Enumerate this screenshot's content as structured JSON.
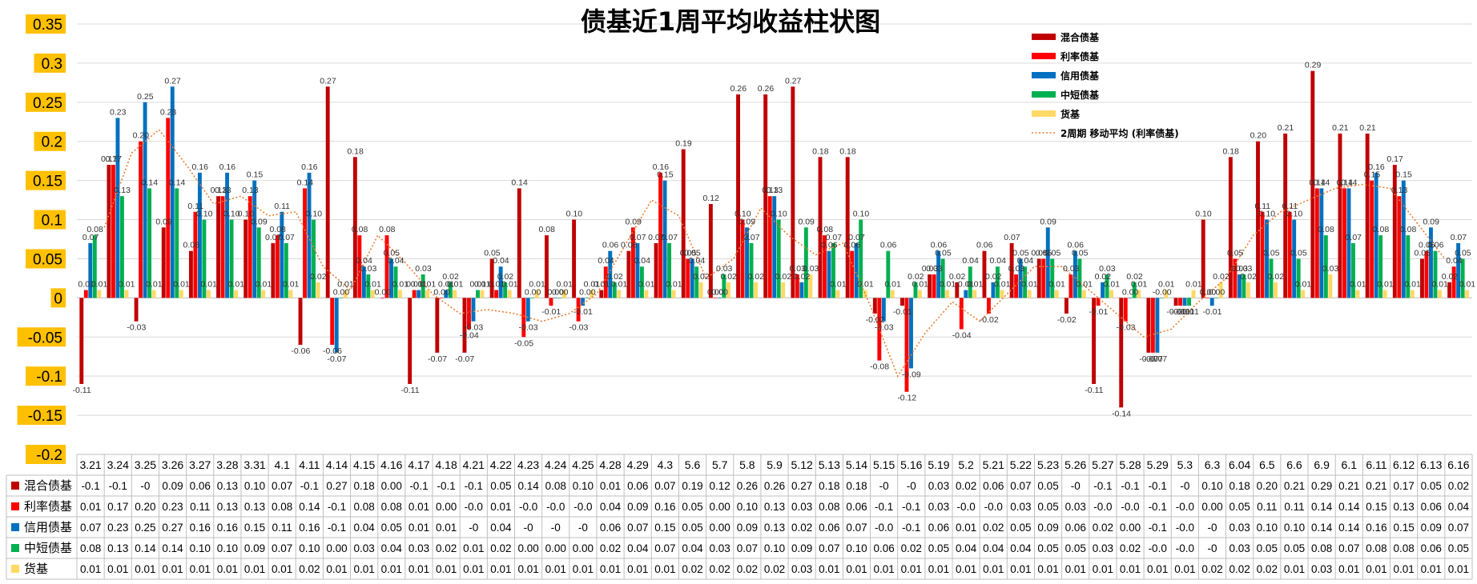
{
  "chart_data": {
    "type": "bar",
    "title": "债基近1周平均收益柱状图",
    "ylim": [
      -0.2,
      0.35
    ],
    "y_ticks": [
      "0.35",
      "0.3",
      "0.25",
      "0.2",
      "0.15",
      "0.1",
      "0.05",
      "0",
      "-0.05",
      "-0.1",
      "-0.15",
      "-0.2"
    ],
    "grid": true,
    "legend_position": "top-right",
    "categories": [
      "3.21",
      "3.24",
      "3.25",
      "3.26",
      "3.27",
      "3.28",
      "3.31",
      "4.1",
      "4.11",
      "4.14",
      "4.15",
      "4.16",
      "4.17",
      "4.18",
      "4.21",
      "4.22",
      "4.23",
      "4.24",
      "4.25",
      "4.28",
      "4.29",
      "4.3",
      "5.6",
      "5.7",
      "5.8",
      "5.9",
      "5.12",
      "5.13",
      "5.14",
      "5.15",
      "5.16",
      "5.19",
      "5.2",
      "5.21",
      "5.22",
      "5.23",
      "5.26",
      "5.27",
      "5.28",
      "5.29",
      "5.3",
      "6.3",
      "6.04",
      "6.5",
      "6.6",
      "6.9",
      "6.1",
      "6.11",
      "6.12",
      "6.13",
      "6.16"
    ],
    "series": [
      {
        "name": "混合债基",
        "color": "#c00000",
        "values": [
          -0.11,
          0.17,
          -0.03,
          0.09,
          0.06,
          0.13,
          0.1,
          0.07,
          -0.06,
          0.27,
          0.18,
          0.0,
          -0.11,
          -0.07,
          -0.07,
          0.05,
          0.14,
          0.08,
          0.1,
          0.01,
          0.06,
          0.07,
          0.19,
          0.12,
          0.26,
          0.26,
          0.27,
          0.18,
          0.18,
          -0.02,
          -0.01,
          0.03,
          0.02,
          0.06,
          0.07,
          0.05,
          -0.02,
          -0.11,
          -0.14,
          -0.07,
          -0.01,
          0.1,
          0.18,
          0.2,
          0.21,
          0.29,
          0.21,
          0.21,
          0.17,
          0.05,
          0.02
        ],
        "labels": [
          "-0.11",
          "0.17",
          "-0.03",
          "0.09",
          "0.06",
          "0.13",
          "0.10",
          "0.07",
          "-0.06",
          "0.27",
          "0.18",
          "0.00",
          "-0.11",
          "-0.07",
          "-0.07",
          "0.05",
          "0.14",
          "0.08",
          "0.10",
          "0.01",
          "0.06",
          "0.07",
          "0.19",
          "0.12",
          "0.26",
          "0.26",
          "0.27",
          "0.18",
          "0.18",
          "-0.02",
          "-0.01",
          "0.03",
          "0.02",
          "0.06",
          "0.07",
          "0.05",
          "-0.02",
          "-0.11",
          "-0.14",
          "-0.07",
          "-0.01",
          "0.10",
          "0.18",
          "0.20",
          "0.21",
          "0.29",
          "0.21",
          "0.21",
          "0.17",
          "0.05",
          "0.02"
        ],
        "table": [
          "-0.1",
          "-0.1",
          "-0",
          "0.09",
          "0.06",
          "0.13",
          "0.10",
          "0.07",
          "-0.1",
          "0.27",
          "0.18",
          "0.00",
          "-0.1",
          "-0.1",
          "-0.1",
          "0.05",
          "0.14",
          "0.08",
          "0.10",
          "0.01",
          "0.06",
          "0.07",
          "0.19",
          "0.12",
          "0.26",
          "0.26",
          "0.27",
          "0.18",
          "0.18",
          "-0",
          "-0",
          "0.03",
          "0.02",
          "0.06",
          "0.07",
          "0.05",
          "-0",
          "-0.1",
          "-0.1",
          "-0.1",
          "-0",
          "0.10",
          "0.18",
          "0.20",
          "0.21",
          "0.29",
          "0.21",
          "0.21",
          "0.17",
          "0.05",
          "0.02"
        ]
      },
      {
        "name": "利率债基",
        "color": "#ff0000",
        "values": [
          0.01,
          0.17,
          0.2,
          0.23,
          0.11,
          0.13,
          0.13,
          0.08,
          0.14,
          -0.06,
          0.08,
          0.08,
          0.01,
          0.0,
          -0.04,
          0.01,
          -0.05,
          -0.01,
          -0.03,
          0.04,
          0.09,
          0.16,
          0.05,
          0.0,
          0.1,
          0.13,
          0.03,
          0.08,
          0.06,
          -0.08,
          -0.12,
          0.03,
          -0.04,
          -0.02,
          0.03,
          0.05,
          0.03,
          -0.01,
          -0.03,
          -0.07,
          -0.01,
          0.0,
          0.05,
          0.11,
          0.11,
          0.14,
          0.14,
          0.15,
          0.13,
          0.06,
          0.04
        ],
        "labels": [
          "0.01",
          "0.17",
          "0.20",
          "0.23",
          "0.11",
          "0.13",
          "0.13",
          "0.08",
          "0.14",
          "-0.06",
          "0.08",
          "0.08",
          "0.01",
          "0.00",
          "-0.04",
          "0.01",
          "-0.05",
          "-0.01",
          "-0.03",
          "0.04",
          "0.09",
          "0.16",
          "0.05",
          "0.00",
          "0.10",
          "0.13",
          "0.03",
          "0.08",
          "0.06",
          "-0.08",
          "-0.12",
          "0.03",
          "-0.04",
          "-0.02",
          "0.03",
          "0.05",
          "0.03",
          "-0.01",
          "-0.03",
          "-0.07",
          "-0.01",
          "0.00",
          "0.05",
          "0.11",
          "0.11",
          "0.14",
          "0.14",
          "0.15",
          "0.13",
          "0.06",
          "0.04"
        ],
        "table": [
          "0.01",
          "0.17",
          "0.20",
          "0.23",
          "0.11",
          "0.13",
          "0.13",
          "0.08",
          "0.14",
          "-0.1",
          "0.08",
          "0.08",
          "0.01",
          "0.00",
          "-0.0",
          "0.01",
          "-0.0",
          "-0.0",
          "-0.0",
          "0.04",
          "0.09",
          "0.16",
          "0.05",
          "0.00",
          "0.10",
          "0.13",
          "0.03",
          "0.08",
          "0.06",
          "-0.1",
          "-0.1",
          "0.03",
          "-0.0",
          "-0.0",
          "0.03",
          "0.05",
          "0.03",
          "-0.0",
          "-0.0",
          "-0.1",
          "-0.0",
          "0.00",
          "0.05",
          "0.11",
          "0.11",
          "0.14",
          "0.14",
          "0.15",
          "0.13",
          "0.06",
          "0.04"
        ]
      },
      {
        "name": "信用债基",
        "color": "#0070c0",
        "values": [
          0.07,
          0.23,
          0.25,
          0.27,
          0.16,
          0.16,
          0.15,
          0.11,
          0.16,
          -0.07,
          0.04,
          0.05,
          0.01,
          0.01,
          -0.03,
          0.04,
          -0.03,
          0.0,
          -0.01,
          0.06,
          0.07,
          0.15,
          0.05,
          0.0,
          0.09,
          0.13,
          0.02,
          0.06,
          0.07,
          -0.03,
          -0.09,
          0.06,
          0.01,
          0.02,
          0.05,
          0.09,
          0.06,
          0.02,
          0.0,
          -0.07,
          -0.01,
          -0.01,
          0.03,
          0.1,
          0.1,
          0.14,
          0.14,
          0.16,
          0.15,
          0.09,
          0.07
        ],
        "labels": [
          "0.07",
          "0.23",
          "0.25",
          "0.27",
          "0.16",
          "0.16",
          "0.15",
          "0.11",
          "0.16",
          "-0.07",
          "0.04",
          "0.05",
          "0.01",
          "0.01",
          "-0.03",
          "0.04",
          "-0.03",
          "0.00",
          "-0.01",
          "0.06",
          "0.07",
          "0.15",
          "0.05",
          "0.00",
          "0.09",
          "0.13",
          "0.02",
          "0.06",
          "0.07",
          "-0.03",
          "-0.09",
          "0.06",
          "0.01",
          "0.02",
          "0.05",
          "0.09",
          "0.06",
          "0.02",
          "0.00",
          "-0.07",
          "-0.01",
          "-0.01",
          "0.03",
          "0.10",
          "0.10",
          "0.14",
          "0.14",
          "0.16",
          "0.15",
          "0.09",
          "0.07"
        ],
        "table": [
          "0.07",
          "0.23",
          "0.25",
          "0.27",
          "0.16",
          "0.16",
          "0.15",
          "0.11",
          "0.16",
          "-0.1",
          "0.04",
          "0.05",
          "0.01",
          "0.01",
          "-0",
          "0.04",
          "-0",
          "-0",
          "-0",
          "0.06",
          "0.07",
          "0.15",
          "0.05",
          "0.00",
          "0.09",
          "0.13",
          "0.02",
          "0.06",
          "0.07",
          "-0.0",
          "-0.1",
          "0.06",
          "0.01",
          "0.02",
          "0.05",
          "0.09",
          "0.06",
          "0.02",
          "0.00",
          "-0.1",
          "-0.0",
          "-0",
          "0.03",
          "0.10",
          "0.10",
          "0.14",
          "0.14",
          "0.16",
          "0.15",
          "0.09",
          "0.07"
        ]
      },
      {
        "name": "中短债基",
        "color": "#00b050",
        "values": [
          0.08,
          0.13,
          0.14,
          0.14,
          0.1,
          0.1,
          0.09,
          0.07,
          0.1,
          0.0,
          0.03,
          0.04,
          0.03,
          0.02,
          0.01,
          0.02,
          0.0,
          0.0,
          0.0,
          0.02,
          0.04,
          0.07,
          0.04,
          0.03,
          0.07,
          0.1,
          0.09,
          0.07,
          0.1,
          0.06,
          0.02,
          0.05,
          0.04,
          0.04,
          0.04,
          0.05,
          0.05,
          0.03,
          0.02,
          -0.0,
          -0.01,
          0.0,
          0.03,
          0.05,
          0.05,
          0.08,
          0.07,
          0.08,
          0.08,
          0.06,
          0.05
        ],
        "labels": [
          "0.08",
          "0.13",
          "0.14",
          "0.14",
          "0.10",
          "0.10",
          "0.09",
          "0.07",
          "0.10",
          "0.00",
          "0.03",
          "0.04",
          "0.03",
          "0.02",
          "0.01",
          "0.02",
          "0.00",
          "0.00",
          "0.00",
          "0.02",
          "0.04",
          "0.07",
          "0.04",
          "0.03",
          "0.07",
          "0.10",
          "0.09",
          "0.07",
          "0.10",
          "0.06",
          "0.02",
          "0.05",
          "0.04",
          "0.04",
          "0.04",
          "0.05",
          "0.05",
          "0.03",
          "0.02",
          "-0.00",
          "-0.01",
          "0.00",
          "0.03",
          "0.05",
          "0.05",
          "0.08",
          "0.07",
          "0.08",
          "0.08",
          "0.06",
          "0.05"
        ],
        "table": [
          "0.08",
          "0.13",
          "0.14",
          "0.14",
          "0.10",
          "0.10",
          "0.09",
          "0.07",
          "0.10",
          "0.00",
          "0.03",
          "0.04",
          "0.03",
          "0.02",
          "0.01",
          "0.02",
          "0.00",
          "0.00",
          "0.00",
          "0.02",
          "0.04",
          "0.07",
          "0.04",
          "0.03",
          "0.07",
          "0.10",
          "0.09",
          "0.07",
          "0.10",
          "0.06",
          "0.02",
          "0.05",
          "0.04",
          "0.04",
          "0.04",
          "0.05",
          "0.05",
          "0.03",
          "0.02",
          "-0.0",
          "-0.0",
          "-0",
          "0.03",
          "0.05",
          "0.05",
          "0.08",
          "0.07",
          "0.08",
          "0.08",
          "0.06",
          "0.05"
        ]
      },
      {
        "name": "货基",
        "color": "#ffd966",
        "values": [
          0.01,
          0.01,
          0.01,
          0.01,
          0.01,
          0.01,
          0.01,
          0.01,
          0.02,
          0.01,
          0.01,
          0.01,
          0.01,
          0.01,
          0.01,
          0.01,
          0.01,
          0.01,
          0.01,
          0.01,
          0.01,
          0.01,
          0.02,
          0.02,
          0.02,
          0.02,
          0.03,
          0.01,
          0.01,
          0.01,
          0.01,
          0.01,
          0.01,
          0.01,
          0.01,
          0.01,
          0.01,
          0.01,
          0.01,
          0.01,
          0.01,
          0.02,
          0.02,
          0.02,
          0.01,
          0.03,
          0.01,
          0.01,
          0.01,
          0.01,
          0.01
        ],
        "labels": [
          "0.01",
          "0.01",
          "0.01",
          "0.01",
          "0.01",
          "0.01",
          "0.01",
          "0.01",
          "0.02",
          "0.01",
          "0.01",
          "0.01",
          "0.01",
          "0.01",
          "0.01",
          "0.01",
          "0.01",
          "0.01",
          "0.01",
          "0.01",
          "0.01",
          "0.01",
          "0.02",
          "0.02",
          "0.02",
          "0.02",
          "0.03",
          "0.01",
          "0.01",
          "0.01",
          "0.01",
          "0.01",
          "0.01",
          "0.01",
          "0.01",
          "0.01",
          "0.01",
          "0.01",
          "0.01",
          "0.01",
          "0.01",
          "0.02",
          "0.02",
          "0.02",
          "0.01",
          "0.03",
          "0.01",
          "0.01",
          "0.01",
          "0.01",
          "0.01"
        ],
        "table": [
          "0.01",
          "0.01",
          "0.01",
          "0.01",
          "0.01",
          "0.01",
          "0.01",
          "0.01",
          "0.02",
          "0.01",
          "0.01",
          "0.01",
          "0.01",
          "0.01",
          "0.01",
          "0.01",
          "0.01",
          "0.01",
          "0.01",
          "0.01",
          "0.01",
          "0.01",
          "0.02",
          "0.02",
          "0.02",
          "0.02",
          "0.03",
          "0.01",
          "0.01",
          "0.01",
          "0.01",
          "0.01",
          "0.01",
          "0.01",
          "0.01",
          "0.01",
          "0.01",
          "0.01",
          "0.01",
          "0.01",
          "0.01",
          "0.02",
          "0.02",
          "0.02",
          "0.01",
          "0.03",
          "0.01",
          "0.01",
          "0.01",
          "0.01",
          "0.01"
        ]
      }
    ],
    "trendline": {
      "name": "2周期 移动平均 (利率债基)",
      "color": "#ed7d31",
      "period": 2,
      "of_series": "利率债基"
    }
  }
}
